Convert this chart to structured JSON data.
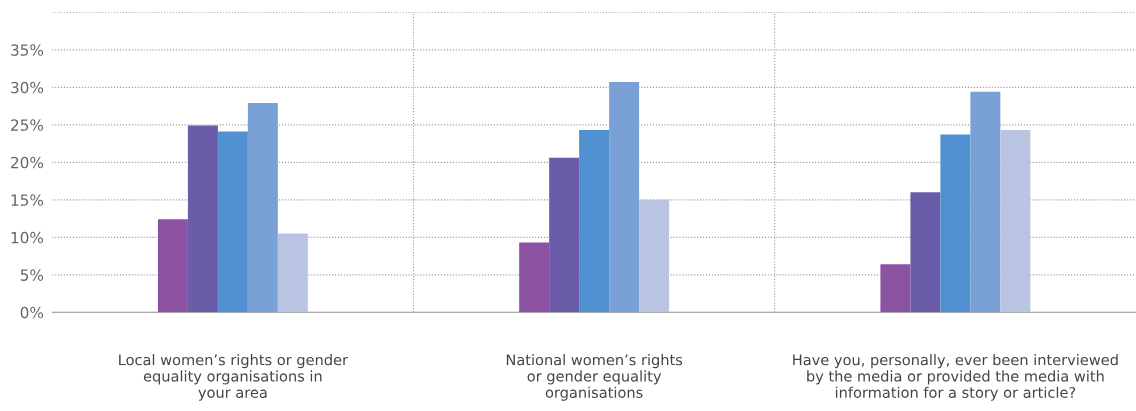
{
  "chart_data": {
    "type": "bar",
    "categories": [
      "Local women’s rights or gender\nequality organisations in\nyour area",
      "National women’s rights\nor gender equality\norganisations",
      "Have you, personally, ever been interviewed\nby the media or provided the media with\ninformation for a story or article?"
    ],
    "series": [
      {
        "color": "#8b52a1",
        "values": [
          12.4,
          9.3,
          6.4
        ]
      },
      {
        "color": "#6a5ca9",
        "values": [
          24.9,
          20.6,
          16.0
        ]
      },
      {
        "color": "#5191d1",
        "values": [
          24.1,
          24.3,
          23.7
        ]
      },
      {
        "color": "#7aa1d6",
        "values": [
          27.9,
          30.7,
          29.4
        ]
      },
      {
        "color": "#b9c4e3",
        "values": [
          10.5,
          15.0,
          24.3
        ]
      }
    ],
    "ylim": [
      0,
      40
    ],
    "yticks": [
      {
        "value": 0,
        "label": "0%"
      },
      {
        "value": 5,
        "label": "5%"
      },
      {
        "value": 10,
        "label": "10%"
      },
      {
        "value": 15,
        "label": "15%"
      },
      {
        "value": 20,
        "label": "20%"
      },
      {
        "value": 25,
        "label": "25%"
      },
      {
        "value": 30,
        "label": "30%"
      },
      {
        "value": 35,
        "label": "35%"
      },
      {
        "value": 40,
        "label": null
      }
    ],
    "grid": true,
    "legend": false
  }
}
